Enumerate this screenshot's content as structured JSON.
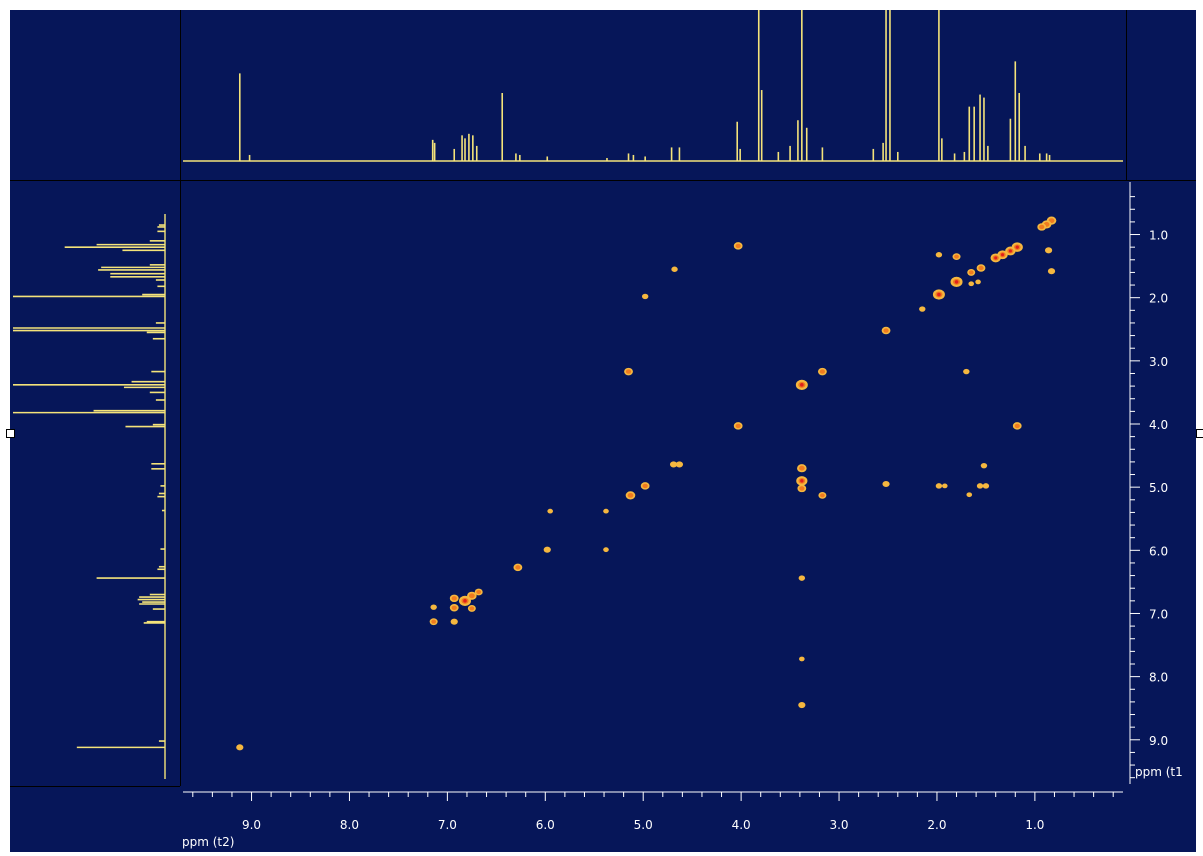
{
  "colors": {
    "background": "#061659",
    "trace": "#f4e37a",
    "frame_line": "#000000",
    "axis": "#ffffff",
    "peak_outer": "#f5b73f",
    "peak_mid": "#f07b1f",
    "peak_core": "#e0201c"
  },
  "chart_data": {
    "type": "scatter",
    "x_axis": {
      "label": "ppm (t2)",
      "range": [
        9.7,
        0.1
      ],
      "reversed": true,
      "ticks": [
        "9.0",
        "8.0",
        "7.0",
        "6.0",
        "5.0",
        "4.0",
        "3.0",
        "2.0",
        "1.0"
      ]
    },
    "y_axis": {
      "label": "ppm (t1",
      "range": [
        0.2,
        9.7
      ],
      "reversed": true,
      "ticks": [
        "1.0",
        "2.0",
        "3.0",
        "4.0",
        "5.0",
        "6.0",
        "7.0",
        "8.0",
        "9.0"
      ]
    },
    "grid": false,
    "top_projection": {
      "peaks": [
        {
          "ppm": 9.12,
          "height": 0.58
        },
        {
          "ppm": 9.02,
          "height": 0.04
        },
        {
          "ppm": 7.15,
          "height": 0.14
        },
        {
          "ppm": 7.13,
          "height": 0.12
        },
        {
          "ppm": 6.93,
          "height": 0.08
        },
        {
          "ppm": 6.85,
          "height": 0.17
        },
        {
          "ppm": 6.82,
          "height": 0.15
        },
        {
          "ppm": 6.78,
          "height": 0.18
        },
        {
          "ppm": 6.74,
          "height": 0.17
        },
        {
          "ppm": 6.7,
          "height": 0.1
        },
        {
          "ppm": 6.44,
          "height": 0.45
        },
        {
          "ppm": 6.3,
          "height": 0.05
        },
        {
          "ppm": 6.26,
          "height": 0.04
        },
        {
          "ppm": 5.98,
          "height": 0.03
        },
        {
          "ppm": 5.37,
          "height": 0.02
        },
        {
          "ppm": 5.15,
          "height": 0.05
        },
        {
          "ppm": 5.1,
          "height": 0.04
        },
        {
          "ppm": 4.98,
          "height": 0.03
        },
        {
          "ppm": 4.71,
          "height": 0.09
        },
        {
          "ppm": 4.63,
          "height": 0.09
        },
        {
          "ppm": 4.04,
          "height": 0.26
        },
        {
          "ppm": 4.01,
          "height": 0.08
        },
        {
          "ppm": 3.82,
          "height": 1.0
        },
        {
          "ppm": 3.79,
          "height": 0.47
        },
        {
          "ppm": 3.62,
          "height": 0.06
        },
        {
          "ppm": 3.5,
          "height": 0.1
        },
        {
          "ppm": 3.42,
          "height": 0.27
        },
        {
          "ppm": 3.38,
          "height": 1.0
        },
        {
          "ppm": 3.33,
          "height": 0.22
        },
        {
          "ppm": 3.17,
          "height": 0.09
        },
        {
          "ppm": 2.65,
          "height": 0.08
        },
        {
          "ppm": 2.55,
          "height": 0.12
        },
        {
          "ppm": 2.52,
          "height": 1.0
        },
        {
          "ppm": 2.48,
          "height": 1.0
        },
        {
          "ppm": 2.4,
          "height": 0.06
        },
        {
          "ppm": 1.98,
          "height": 1.0
        },
        {
          "ppm": 1.95,
          "height": 0.15
        },
        {
          "ppm": 1.82,
          "height": 0.05
        },
        {
          "ppm": 1.72,
          "height": 0.06
        },
        {
          "ppm": 1.67,
          "height": 0.36
        },
        {
          "ppm": 1.62,
          "height": 0.36
        },
        {
          "ppm": 1.56,
          "height": 0.44
        },
        {
          "ppm": 1.52,
          "height": 0.42
        },
        {
          "ppm": 1.48,
          "height": 0.1
        },
        {
          "ppm": 1.25,
          "height": 0.28
        },
        {
          "ppm": 1.2,
          "height": 0.66
        },
        {
          "ppm": 1.16,
          "height": 0.45
        },
        {
          "ppm": 1.1,
          "height": 0.1
        },
        {
          "ppm": 0.95,
          "height": 0.05
        },
        {
          "ppm": 0.88,
          "height": 0.05
        },
        {
          "ppm": 0.85,
          "height": 0.04
        }
      ]
    },
    "cross_peaks": [
      {
        "x": 0.83,
        "y": 0.78,
        "i": 0.7
      },
      {
        "x": 0.88,
        "y": 0.84,
        "i": 0.7
      },
      {
        "x": 0.93,
        "y": 0.88,
        "i": 0.6
      },
      {
        "x": 0.86,
        "y": 1.25,
        "i": 0.4
      },
      {
        "x": 0.83,
        "y": 1.58,
        "i": 0.4
      },
      {
        "x": 1.18,
        "y": 1.2,
        "i": 0.9
      },
      {
        "x": 1.25,
        "y": 1.26,
        "i": 0.8
      },
      {
        "x": 1.33,
        "y": 1.32,
        "i": 0.8
      },
      {
        "x": 1.4,
        "y": 1.37,
        "i": 0.8
      },
      {
        "x": 1.55,
        "y": 1.53,
        "i": 0.6
      },
      {
        "x": 1.65,
        "y": 1.6,
        "i": 0.5
      },
      {
        "x": 1.8,
        "y": 1.75,
        "i": 1.0
      },
      {
        "x": 1.8,
        "y": 1.35,
        "i": 0.5
      },
      {
        "x": 1.98,
        "y": 1.32,
        "i": 0.3
      },
      {
        "x": 1.98,
        "y": 1.95,
        "i": 1.0
      },
      {
        "x": 2.15,
        "y": 2.18,
        "i": 0.3
      },
      {
        "x": 2.52,
        "y": 2.52,
        "i": 0.6
      },
      {
        "x": 1.65,
        "y": 1.78,
        "i": 0.2
      },
      {
        "x": 1.58,
        "y": 1.75,
        "i": 0.2
      },
      {
        "x": 4.03,
        "y": 1.18,
        "i": 0.6
      },
      {
        "x": 4.68,
        "y": 1.55,
        "i": 0.3
      },
      {
        "x": 4.98,
        "y": 1.98,
        "i": 0.3
      },
      {
        "x": 5.15,
        "y": 3.17,
        "i": 0.6
      },
      {
        "x": 3.38,
        "y": 3.38,
        "i": 1.0
      },
      {
        "x": 3.17,
        "y": 3.17,
        "i": 0.6
      },
      {
        "x": 1.7,
        "y": 3.17,
        "i": 0.3
      },
      {
        "x": 4.03,
        "y": 4.03,
        "i": 0.6
      },
      {
        "x": 1.18,
        "y": 4.03,
        "i": 0.6
      },
      {
        "x": 4.69,
        "y": 4.64,
        "i": 0.4
      },
      {
        "x": 4.63,
        "y": 4.64,
        "i": 0.4
      },
      {
        "x": 3.38,
        "y": 4.7,
        "i": 0.7
      },
      {
        "x": 3.38,
        "y": 4.9,
        "i": 0.9
      },
      {
        "x": 3.38,
        "y": 5.02,
        "i": 0.6
      },
      {
        "x": 4.98,
        "y": 4.98,
        "i": 0.6
      },
      {
        "x": 5.13,
        "y": 5.13,
        "i": 0.7
      },
      {
        "x": 3.17,
        "y": 5.13,
        "i": 0.5
      },
      {
        "x": 2.52,
        "y": 4.95,
        "i": 0.4
      },
      {
        "x": 1.98,
        "y": 4.98,
        "i": 0.3
      },
      {
        "x": 1.92,
        "y": 4.98,
        "i": 0.2
      },
      {
        "x": 1.56,
        "y": 4.98,
        "i": 0.3
      },
      {
        "x": 1.5,
        "y": 4.98,
        "i": 0.3
      },
      {
        "x": 1.52,
        "y": 4.66,
        "i": 0.3
      },
      {
        "x": 1.67,
        "y": 5.12,
        "i": 0.2
      },
      {
        "x": 5.95,
        "y": 5.38,
        "i": 0.2
      },
      {
        "x": 5.98,
        "y": 5.99,
        "i": 0.4
      },
      {
        "x": 5.38,
        "y": 5.38,
        "i": 0.2
      },
      {
        "x": 5.38,
        "y": 5.99,
        "i": 0.2
      },
      {
        "x": 6.28,
        "y": 6.27,
        "i": 0.6
      },
      {
        "x": 3.38,
        "y": 6.44,
        "i": 0.3
      },
      {
        "x": 6.68,
        "y": 6.66,
        "i": 0.5
      },
      {
        "x": 6.75,
        "y": 6.72,
        "i": 0.7
      },
      {
        "x": 6.82,
        "y": 6.8,
        "i": 1.0
      },
      {
        "x": 6.93,
        "y": 6.76,
        "i": 0.6
      },
      {
        "x": 6.93,
        "y": 6.91,
        "i": 0.6
      },
      {
        "x": 6.75,
        "y": 6.92,
        "i": 0.5
      },
      {
        "x": 7.14,
        "y": 6.9,
        "i": 0.3
      },
      {
        "x": 7.14,
        "y": 7.13,
        "i": 0.5
      },
      {
        "x": 6.93,
        "y": 7.13,
        "i": 0.4
      },
      {
        "x": 3.38,
        "y": 7.72,
        "i": 0.2
      },
      {
        "x": 3.38,
        "y": 8.45,
        "i": 0.4
      },
      {
        "x": 9.12,
        "y": 9.12,
        "i": 0.4
      }
    ]
  }
}
